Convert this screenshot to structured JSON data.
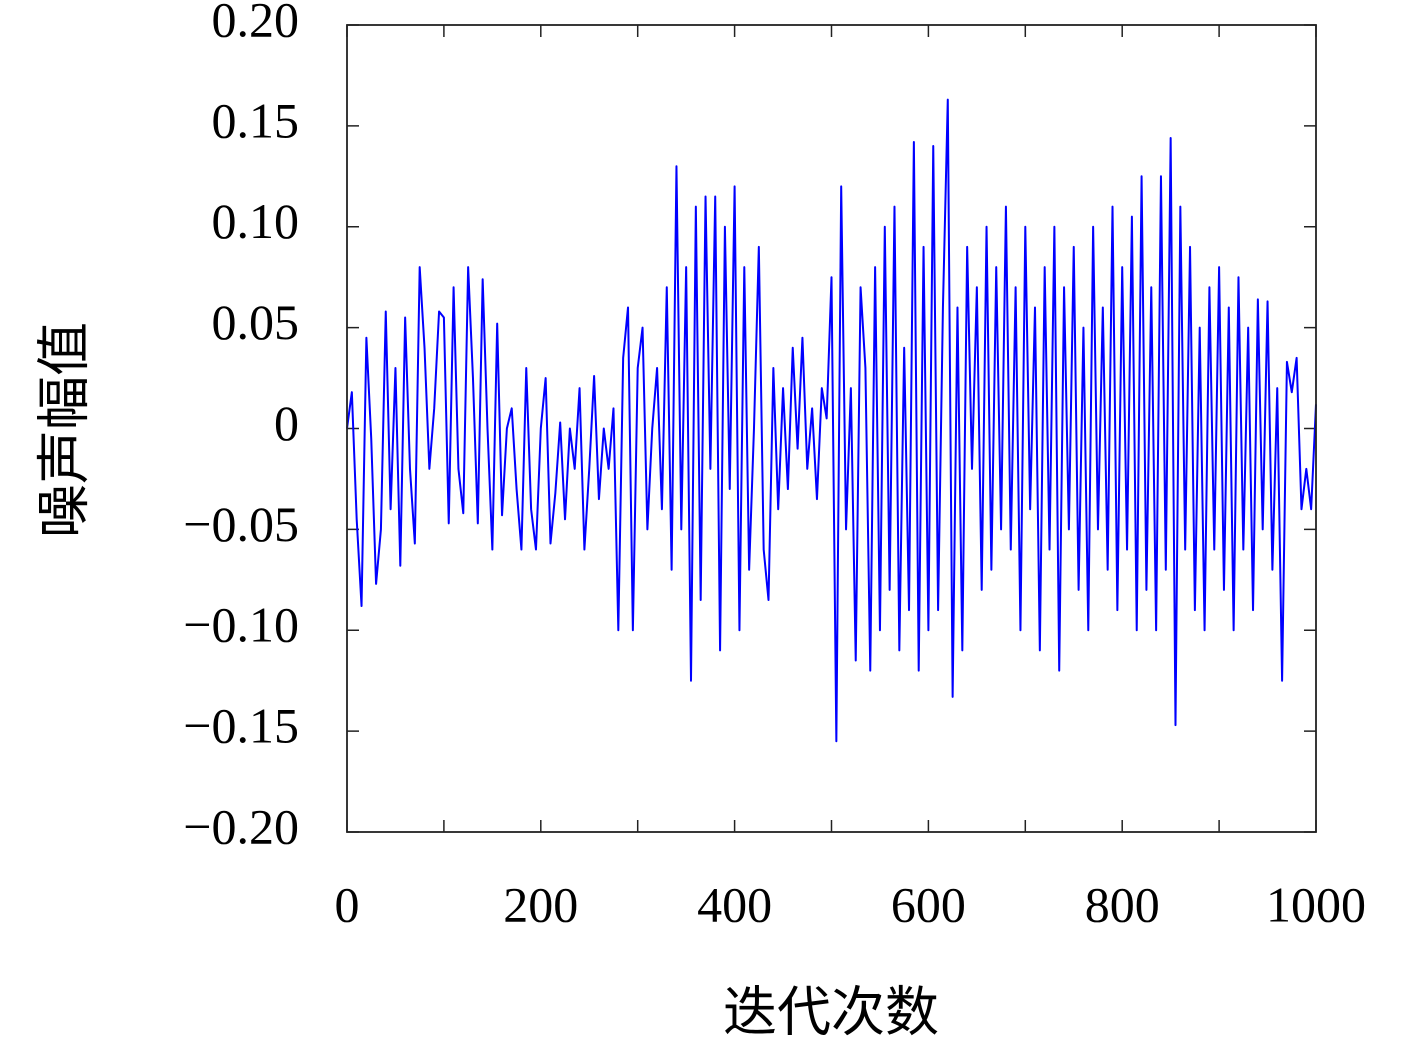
{
  "chart_data": {
    "type": "line",
    "xlabel": "迭代次数",
    "ylabel": "噪声幅值",
    "xlim": [
      0,
      1000
    ],
    "ylim": [
      -0.2,
      0.2
    ],
    "xticks": [
      0,
      200,
      400,
      600,
      800,
      1000
    ],
    "xminor_ticks": [
      100,
      300,
      500,
      700,
      900
    ],
    "yticks": [
      {
        "value": -0.2,
        "label": "−0.20"
      },
      {
        "value": -0.15,
        "label": "−0.15"
      },
      {
        "value": -0.1,
        "label": "−0.10"
      },
      {
        "value": -0.05,
        "label": "−0.05"
      },
      0,
      0.05,
      {
        "value": 0.1,
        "label": "0.10"
      },
      0.15,
      {
        "value": 0.2,
        "label": "0.20"
      }
    ],
    "x": [
      0,
      5,
      10,
      15,
      20,
      25,
      30,
      35,
      40,
      45,
      50,
      55,
      60,
      65,
      70,
      75,
      80,
      85,
      90,
      95,
      100,
      105,
      110,
      115,
      120,
      125,
      130,
      135,
      140,
      145,
      150,
      155,
      160,
      165,
      170,
      175,
      180,
      185,
      190,
      195,
      200,
      205,
      210,
      215,
      220,
      225,
      230,
      235,
      240,
      245,
      250,
      255,
      260,
      265,
      270,
      275,
      280,
      285,
      290,
      295,
      300,
      305,
      310,
      315,
      320,
      325,
      330,
      335,
      340,
      345,
      350,
      355,
      360,
      365,
      370,
      375,
      380,
      385,
      390,
      395,
      400,
      405,
      410,
      415,
      420,
      425,
      430,
      435,
      440,
      445,
      450,
      455,
      460,
      465,
      470,
      475,
      480,
      485,
      490,
      495,
      500,
      505,
      510,
      515,
      520,
      525,
      530,
      535,
      540,
      545,
      550,
      555,
      560,
      565,
      570,
      575,
      580,
      585,
      590,
      595,
      600,
      605,
      610,
      615,
      620,
      625,
      630,
      635,
      640,
      645,
      650,
      655,
      660,
      665,
      670,
      675,
      680,
      685,
      690,
      695,
      700,
      705,
      710,
      715,
      720,
      725,
      730,
      735,
      740,
      745,
      750,
      755,
      760,
      765,
      770,
      775,
      780,
      785,
      790,
      795,
      800,
      805,
      810,
      815,
      820,
      825,
      830,
      835,
      840,
      845,
      850,
      855,
      860,
      865,
      870,
      875,
      880,
      885,
      890,
      895,
      900,
      905,
      910,
      915,
      920,
      925,
      930,
      935,
      940,
      945,
      950,
      955,
      960,
      965,
      970,
      975,
      980,
      985,
      990,
      995,
      1000
    ],
    "series": [
      {
        "color": "#0000ff",
        "values": [
          0,
          0.018,
          -0.045,
          -0.088,
          0.045,
          -0.005,
          -0.077,
          -0.05,
          0.058,
          -0.04,
          0.03,
          -0.068,
          0.055,
          -0.02,
          -0.057,
          0.08,
          0.04,
          -0.02,
          0.01,
          0.058,
          0.055,
          -0.047,
          0.07,
          -0.02,
          -0.042,
          0.08,
          0.025,
          -0.047,
          0.074,
          0.0,
          -0.06,
          0.052,
          -0.043,
          0.0,
          0.01,
          -0.03,
          -0.06,
          0.03,
          -0.04,
          -0.06,
          0.0,
          0.025,
          -0.057,
          -0.032,
          0.003,
          -0.045,
          0.0,
          -0.02,
          0.02,
          -0.06,
          -0.02,
          0.026,
          -0.035,
          0.0,
          -0.02,
          0.01,
          -0.1,
          0.035,
          0.06,
          -0.1,
          0.03,
          0.05,
          -0.05,
          0.0,
          0.03,
          -0.04,
          0.07,
          -0.07,
          0.13,
          -0.05,
          0.08,
          -0.125,
          0.11,
          -0.085,
          0.115,
          -0.02,
          0.115,
          -0.11,
          0.1,
          -0.03,
          0.12,
          -0.1,
          0.08,
          -0.07,
          0.0,
          0.09,
          -0.06,
          -0.085,
          0.03,
          -0.04,
          0.02,
          -0.03,
          0.04,
          -0.01,
          0.045,
          -0.02,
          0.01,
          -0.035,
          0.02,
          0.005,
          0.075,
          -0.155,
          0.12,
          -0.05,
          0.02,
          -0.115,
          0.07,
          0.03,
          -0.12,
          0.08,
          -0.1,
          0.1,
          -0.08,
          0.11,
          -0.11,
          0.04,
          -0.09,
          0.142,
          -0.12,
          0.09,
          -0.1,
          0.14,
          -0.09,
          0.06,
          0.163,
          -0.133,
          0.06,
          -0.11,
          0.09,
          -0.02,
          0.07,
          -0.08,
          0.1,
          -0.07,
          0.08,
          -0.05,
          0.11,
          -0.06,
          0.07,
          -0.1,
          0.1,
          -0.04,
          0.06,
          -0.11,
          0.08,
          -0.06,
          0.1,
          -0.12,
          0.07,
          -0.05,
          0.09,
          -0.08,
          0.05,
          -0.1,
          0.1,
          -0.05,
          0.06,
          -0.07,
          0.11,
          -0.09,
          0.08,
          -0.06,
          0.105,
          -0.1,
          0.125,
          -0.08,
          0.07,
          -0.1,
          0.125,
          -0.07,
          0.144,
          -0.147,
          0.11,
          -0.06,
          0.09,
          -0.09,
          0.05,
          -0.1,
          0.07,
          -0.06,
          0.08,
          -0.08,
          0.06,
          -0.1,
          0.075,
          -0.06,
          0.05,
          -0.09,
          0.064,
          -0.05,
          0.063,
          -0.07,
          0.02,
          -0.125,
          0.033,
          0.018,
          0.035,
          -0.04,
          -0.02,
          -0.04,
          0.012
        ]
      }
    ]
  }
}
